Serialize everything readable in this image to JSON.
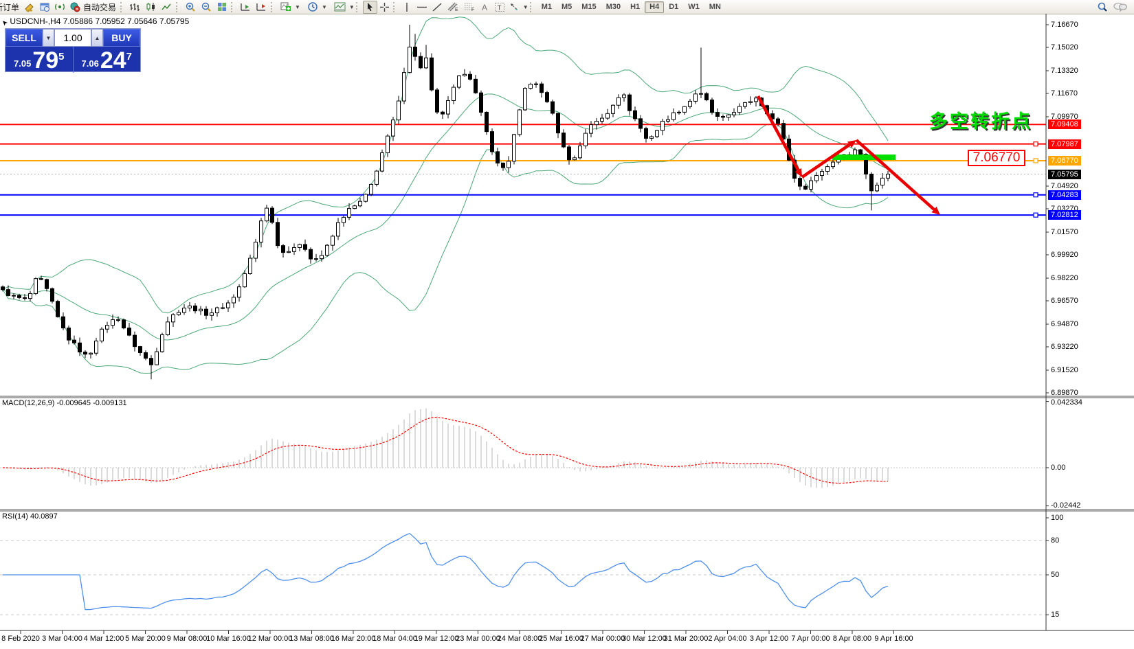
{
  "toolbar": {
    "new_order_label": "新订单",
    "autotrade_label": "自动交易",
    "timeframes": [
      "M1",
      "M5",
      "M15",
      "M30",
      "H1",
      "H4",
      "D1",
      "W1",
      "MN"
    ],
    "active_timeframe": "H4"
  },
  "one_click": {
    "sell_label": "SELL",
    "buy_label": "BUY",
    "volume": "1.00",
    "sell_price_small": "7.05",
    "sell_price_big": "79",
    "sell_price_sup": "5",
    "buy_price_small": "7.06",
    "buy_price_big": "24",
    "buy_price_sup": "7"
  },
  "chart": {
    "title": "USDCNH-,H4  7.05886 7.05952 7.05646 7.05795",
    "annotation_text": "多空转折点",
    "annotation_color": "#00dc00",
    "price_box_label": "7.06770",
    "y_ticks": [
      "7.16670",
      "7.15020",
      "7.13320",
      "7.11670",
      "7.09970",
      "7.04920",
      "7.03270",
      "7.01570",
      "6.99920",
      "6.98220",
      "6.96570",
      "6.94870",
      "6.93220",
      "6.91520",
      "6.89870"
    ],
    "levels": [
      {
        "label": "7.09408",
        "value": 7.09408,
        "color": "#ff0000",
        "width": 2,
        "handle": false
      },
      {
        "label": "7.07987",
        "value": 7.07987,
        "color": "#ff0000",
        "width": 2,
        "handle": true
      },
      {
        "label": "7.06770",
        "value": 7.0677,
        "color": "#ffa500",
        "width": 2,
        "handle": true
      },
      {
        "label": "7.05795",
        "value": 7.05795,
        "color": "#000000",
        "width": 0,
        "handle": false,
        "current": true
      },
      {
        "label": "7.04283",
        "value": 7.04283,
        "color": "#0000ff",
        "width": 2,
        "handle": true
      },
      {
        "label": "7.02812",
        "value": 7.02812,
        "color": "#0000ff",
        "width": 2,
        "handle": true
      }
    ]
  },
  "macd_panel": {
    "label": "MACD(12,26,9) -0.009645 -0.009131",
    "ticks": [
      {
        "text": "0.042334",
        "value": 0.042334
      },
      {
        "text": "0.00",
        "value": 0.0
      },
      {
        "text": "-0.02442",
        "value": -0.02442
      }
    ]
  },
  "rsi_panel": {
    "label": "RSI(14) 40.0897",
    "ticks": [
      {
        "text": "100",
        "value": 100
      },
      {
        "text": "80",
        "value": 80
      },
      {
        "text": "50",
        "value": 50
      },
      {
        "text": "15",
        "value": 15
      }
    ],
    "level_lines": [
      80,
      50,
      15
    ]
  },
  "time_axis": [
    "8 Feb 2020",
    "3 Mar 04:00",
    "4 Mar 12:00",
    "5 Mar 20:00",
    "9 Mar 08:00",
    "10 Mar 16:00",
    "12 Mar 00:00",
    "13 Mar 08:00",
    "16 Mar 20:00",
    "18 Mar 04:00",
    "19 Mar 12:00",
    "23 Mar 00:00",
    "24 Mar 08:00",
    "25 Mar 16:00",
    "27 Mar 00:00",
    "30 Mar 12:00",
    "31 Mar 20:00",
    "2 Apr 04:00",
    "3 Apr 12:00",
    "7 Apr 00:00",
    "8 Apr 08:00",
    "9 Apr 16:00"
  ],
  "chart_data": {
    "type": "candlestick",
    "symbol": "USDCNH-",
    "timeframe": "H4",
    "current_bar": {
      "open": 7.05886,
      "high": 7.05952,
      "low": 7.05646,
      "close": 7.05795
    },
    "bar_spacing_px": 8,
    "price_anchors": [
      [
        0,
        6.974
      ],
      [
        18,
        6.969
      ],
      [
        40,
        6.966
      ],
      [
        55,
        6.984
      ],
      [
        70,
        6.972
      ],
      [
        85,
        6.952
      ],
      [
        100,
        6.938
      ],
      [
        115,
        6.93
      ],
      [
        128,
        6.924
      ],
      [
        142,
        6.94
      ],
      [
        158,
        6.95
      ],
      [
        172,
        6.953
      ],
      [
        185,
        6.942
      ],
      [
        200,
        6.93
      ],
      [
        215,
        6.922
      ],
      [
        222,
        6.918
      ],
      [
        232,
        6.938
      ],
      [
        245,
        6.952
      ],
      [
        258,
        6.958
      ],
      [
        272,
        6.962
      ],
      [
        288,
        6.959
      ],
      [
        302,
        6.956
      ],
      [
        318,
        6.96
      ],
      [
        332,
        6.964
      ],
      [
        345,
        6.972
      ],
      [
        358,
        6.988
      ],
      [
        370,
        7.004
      ],
      [
        382,
        7.028
      ],
      [
        390,
        7.036
      ],
      [
        398,
        7.018
      ],
      [
        408,
        7.0
      ],
      [
        420,
        7.003
      ],
      [
        432,
        7.006
      ],
      [
        444,
        7.004
      ],
      [
        455,
        6.995
      ],
      [
        468,
        6.999
      ],
      [
        480,
        7.008
      ],
      [
        492,
        7.022
      ],
      [
        505,
        7.031
      ],
      [
        518,
        7.035
      ],
      [
        530,
        7.04
      ],
      [
        542,
        7.052
      ],
      [
        555,
        7.072
      ],
      [
        568,
        7.09
      ],
      [
        580,
        7.11
      ],
      [
        592,
        7.145
      ],
      [
        600,
        7.158
      ],
      [
        608,
        7.128
      ],
      [
        618,
        7.148
      ],
      [
        628,
        7.118
      ],
      [
        638,
        7.098
      ],
      [
        648,
        7.105
      ],
      [
        658,
        7.118
      ],
      [
        668,
        7.128
      ],
      [
        680,
        7.134
      ],
      [
        690,
        7.12
      ],
      [
        702,
        7.098
      ],
      [
        715,
        7.077
      ],
      [
        728,
        7.06
      ],
      [
        740,
        7.068
      ],
      [
        752,
        7.095
      ],
      [
        764,
        7.12
      ],
      [
        775,
        7.126
      ],
      [
        787,
        7.118
      ],
      [
        798,
        7.11
      ],
      [
        810,
        7.092
      ],
      [
        822,
        7.074
      ],
      [
        833,
        7.066
      ],
      [
        845,
        7.08
      ],
      [
        857,
        7.094
      ],
      [
        870,
        7.096
      ],
      [
        882,
        7.101
      ],
      [
        894,
        7.111
      ],
      [
        905,
        7.118
      ],
      [
        917,
        7.104
      ],
      [
        929,
        7.094
      ],
      [
        941,
        7.083
      ],
      [
        953,
        7.088
      ],
      [
        966,
        7.097
      ],
      [
        978,
        7.101
      ],
      [
        990,
        7.105
      ],
      [
        1002,
        7.11
      ],
      [
        1014,
        7.118
      ],
      [
        1026,
        7.113
      ],
      [
        1038,
        7.101
      ],
      [
        1050,
        7.097
      ],
      [
        1062,
        7.102
      ],
      [
        1075,
        7.106
      ],
      [
        1088,
        7.11
      ],
      [
        1100,
        7.114
      ],
      [
        1112,
        7.106
      ],
      [
        1124,
        7.098
      ],
      [
        1136,
        7.092
      ],
      [
        1148,
        7.068
      ],
      [
        1160,
        7.05
      ],
      [
        1168,
        7.046
      ],
      [
        1178,
        7.052
      ],
      [
        1190,
        7.058
      ],
      [
        1202,
        7.063
      ],
      [
        1214,
        7.068
      ],
      [
        1226,
        7.074
      ],
      [
        1238,
        7.071
      ],
      [
        1247,
        7.079
      ],
      [
        1256,
        7.068
      ],
      [
        1265,
        7.044
      ],
      [
        1274,
        7.05
      ],
      [
        1283,
        7.056
      ],
      [
        1292,
        7.058
      ]
    ],
    "wick_overrides": [
      {
        "x": 596,
        "high": 7.1667
      },
      {
        "x": 604,
        "high": 7.16
      },
      {
        "x": 616,
        "high": 7.152
      },
      {
        "x": 1016,
        "high": 7.15
      },
      {
        "x": 220,
        "low": 6.9085
      },
      {
        "x": 1264,
        "low": 7.0315
      }
    ],
    "indicators": {
      "bollinger": {
        "period": 20,
        "deviation": 2,
        "color": "#4ca877"
      },
      "macd": {
        "fast": 12,
        "slow": 26,
        "signal": 9,
        "value": -0.009645,
        "signal_value": -0.009131,
        "bar_color": "#b4b4b4",
        "signal_color": "#ff0000"
      },
      "rsi": {
        "period": 14,
        "value": 40.0897,
        "color": "#4d8fea"
      }
    },
    "drawings": {
      "zigzag": {
        "color": "#e80000",
        "points": [
          [
            1103,
            140
          ],
          [
            1167,
            258
          ],
          [
            1246,
            204
          ],
          [
            1368,
            313
          ]
        ]
      },
      "green_bar": {
        "color": "#00e000",
        "x": 1211,
        "y": 225,
        "w": 92,
        "h": 8
      }
    }
  }
}
